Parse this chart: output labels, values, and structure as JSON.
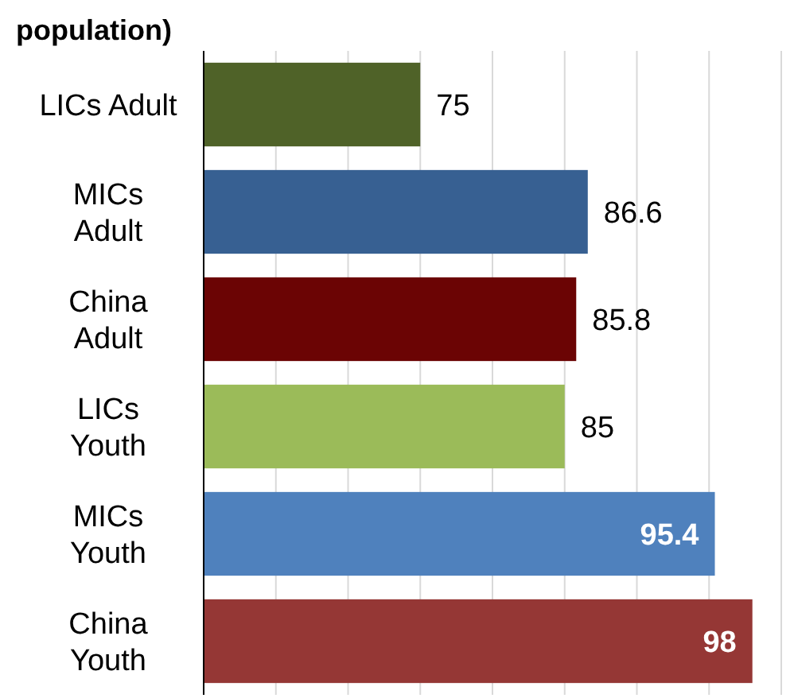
{
  "chart_data": {
    "type": "bar",
    "orientation": "horizontal",
    "title": "population)",
    "categories": [
      "LICs Adult",
      "MICs\nAdult",
      "China\nAdult",
      "LICs\nYouth",
      "MICs\nYouth",
      "China\nYouth"
    ],
    "values": [
      75,
      86.6,
      85.8,
      85,
      95.4,
      98
    ],
    "colors": [
      "#4f6228",
      "#376092",
      "#6b0404",
      "#9bbb59",
      "#4f81bd",
      "#953735"
    ],
    "xlim": [
      60,
      100
    ],
    "xticks": [
      {
        "value": 60,
        "label": null
      },
      {
        "value": 65,
        "label": null
      },
      {
        "value": 70,
        "label": null
      },
      {
        "value": 75,
        "label": null
      },
      {
        "value": 80,
        "label": null
      },
      {
        "value": 85,
        "label": null
      },
      {
        "value": 90,
        "label": null
      },
      {
        "value": 95,
        "label": null
      },
      {
        "value": 100,
        "label": null
      }
    ],
    "grid": "x",
    "tick_labels": "y",
    "data_labels": true
  }
}
